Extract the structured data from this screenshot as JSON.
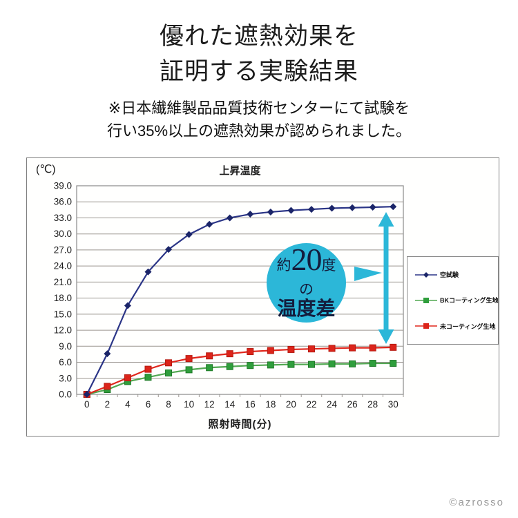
{
  "header": {
    "title_lines": [
      "優れた遮熱効果を",
      "証明する実験結果"
    ],
    "subtitle_lines": [
      "※日本繊維製品品質技術センターにて試験を",
      "行い35%以上の遮熱効果が認められました。"
    ]
  },
  "annotation": {
    "about": "約",
    "value": "20",
    "unit": "度",
    "particle": "の",
    "label": "温度差"
  },
  "watermark": "©azrosso",
  "colors": {
    "accent_cyan": "#2cb7d8",
    "grid": "#9a958f",
    "axis_text": "#1d1d1d",
    "plot_border": "#8a8a8a"
  },
  "chart_data": {
    "type": "line",
    "title": "上昇温度",
    "y_unit_label": "(℃)",
    "xlabel": "照射時間(分)",
    "x": [
      0,
      2,
      4,
      6,
      8,
      10,
      12,
      14,
      16,
      18,
      20,
      22,
      24,
      26,
      28,
      30
    ],
    "xlim": [
      0,
      30
    ],
    "ylim": [
      0,
      39
    ],
    "ytick_step": 3,
    "grid": "horizontal-only",
    "legend_position": "right",
    "series": [
      {
        "name": "空試験",
        "color": "#2b3587",
        "marker": "diamond",
        "marker_color": "#1b2569",
        "values": [
          0,
          7.6,
          16.6,
          22.9,
          27.1,
          29.9,
          31.8,
          33.0,
          33.7,
          34.1,
          34.4,
          34.6,
          34.8,
          34.9,
          35.0,
          35.1
        ]
      },
      {
        "name": "BKコーティング生地",
        "color": "#52a852",
        "marker": "square",
        "marker_color": "#2f9e3c",
        "marker_edge": "#1f7a28",
        "values": [
          0,
          0.9,
          2.4,
          3.2,
          4.0,
          4.6,
          5.0,
          5.2,
          5.4,
          5.5,
          5.6,
          5.6,
          5.7,
          5.7,
          5.8,
          5.8
        ]
      },
      {
        "name": "未コーティング生地",
        "color": "#e0261c",
        "marker": "square",
        "marker_color": "#dc241a",
        "marker_edge": "#b51a10",
        "values": [
          0,
          1.5,
          3.1,
          4.7,
          5.9,
          6.7,
          7.2,
          7.6,
          8.0,
          8.2,
          8.4,
          8.5,
          8.6,
          8.7,
          8.7,
          8.8
        ]
      }
    ],
    "annotation_text": "約20度の温度差"
  }
}
